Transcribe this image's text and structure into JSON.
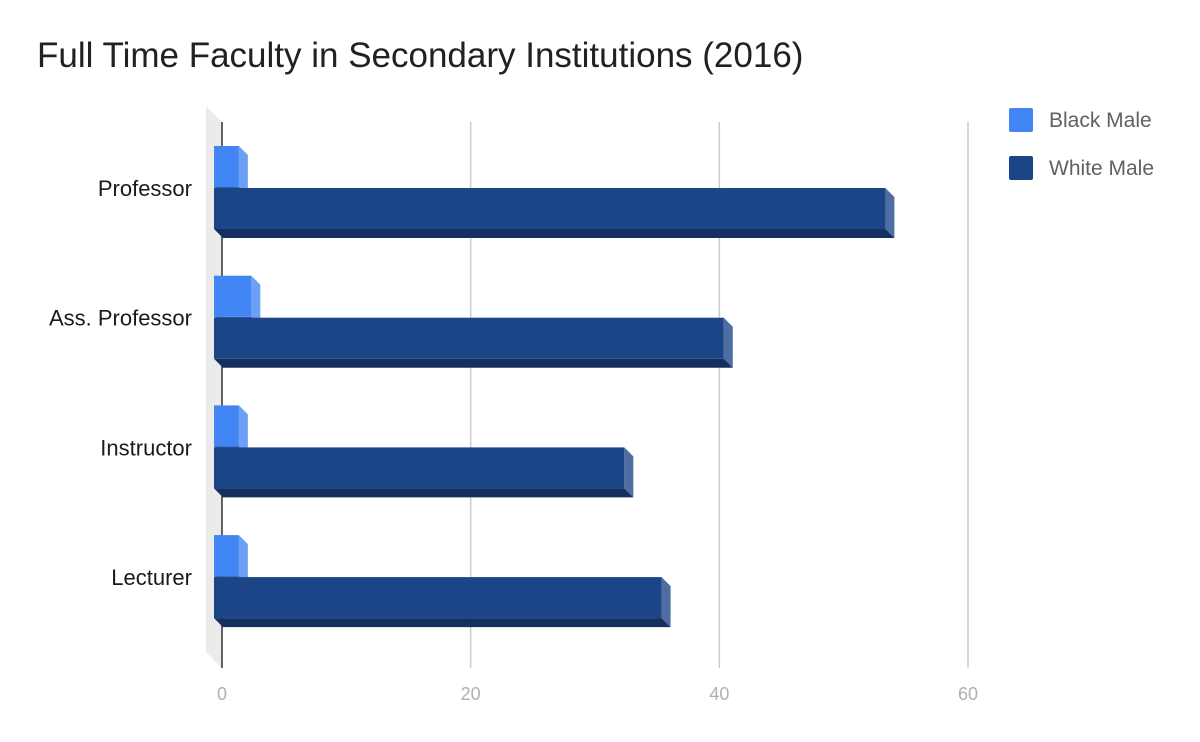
{
  "chart_data": {
    "type": "bar",
    "orientation": "horizontal",
    "title": "Full Time Faculty in Secondary Institutions (2016)",
    "categories": [
      "Professor",
      "Ass. Professor",
      "Instructor",
      "Lecturer"
    ],
    "series": [
      {
        "name": "Black Male",
        "color": "#4285f4",
        "values": [
          2,
          3,
          2,
          2
        ]
      },
      {
        "name": "White Male",
        "color": "#1c4587",
        "values": [
          54,
          41,
          33,
          36
        ]
      }
    ],
    "xlim": [
      0,
      60
    ],
    "xticks": [
      "0",
      "20",
      "40",
      "60"
    ],
    "grid": true,
    "legend": "top-right",
    "style": "3d"
  }
}
